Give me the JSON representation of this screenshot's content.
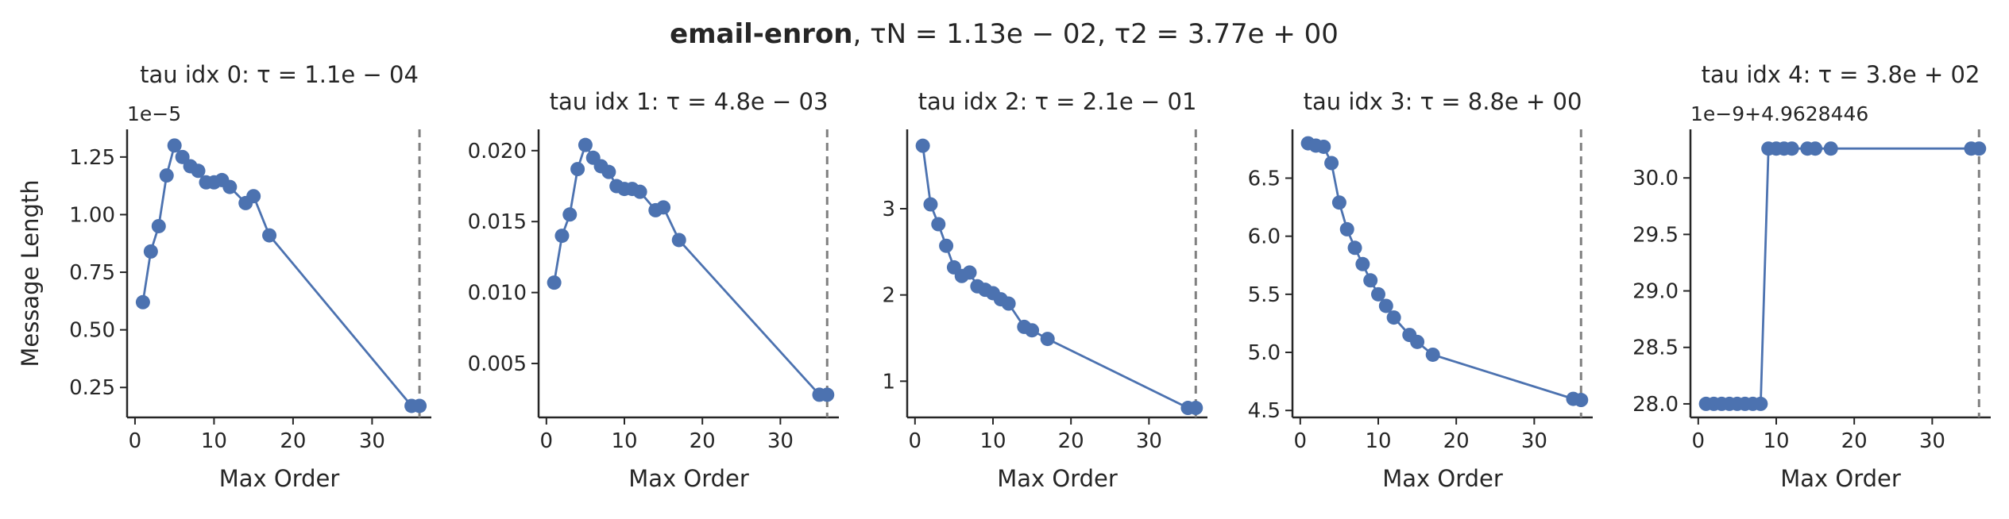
{
  "colors": {
    "series": "#4c72b0",
    "axis": "#262626",
    "vline": "#808080",
    "background": "#ffffff"
  },
  "suptitle": {
    "bold": "email-enron",
    "rest": ", τN = 1.13e − 02, τ2 = 3.77e + 00"
  },
  "chart_data": [
    {
      "type": "line",
      "title": "tau idx 0: τ = 1.1e − 04",
      "xlabel": "Max Order",
      "ylabel": "Message Length",
      "offset_text": "1e−5",
      "xlim": [
        -1,
        37.5
      ],
      "ylim": [
        0.12,
        1.37
      ],
      "xticks": [
        0,
        10,
        20,
        30
      ],
      "xtick_labels": [
        "0",
        "10",
        "20",
        "30"
      ],
      "yticks": [
        0.25,
        0.5,
        0.75,
        1.0,
        1.25
      ],
      "ytick_labels": [
        "0.25",
        "0.50",
        "0.75",
        "1.00",
        "1.25"
      ],
      "vline_x": 36,
      "x": [
        1,
        2,
        3,
        4,
        5,
        6,
        7,
        8,
        9,
        10,
        11,
        12,
        14,
        15,
        17,
        35,
        36
      ],
      "y": [
        0.62,
        0.84,
        0.95,
        1.17,
        1.3,
        1.25,
        1.21,
        1.19,
        1.14,
        1.14,
        1.15,
        1.12,
        1.05,
        1.08,
        0.91,
        0.17,
        0.17
      ]
    },
    {
      "type": "line",
      "title": "tau idx 1: τ = 4.8e − 03",
      "xlabel": "Max Order",
      "ylabel": "",
      "offset_text": "",
      "xlim": [
        -1,
        37.5
      ],
      "ylim": [
        0.0012,
        0.0215
      ],
      "xticks": [
        0,
        10,
        20,
        30
      ],
      "xtick_labels": [
        "0",
        "10",
        "20",
        "30"
      ],
      "yticks": [
        0.005,
        0.01,
        0.015,
        0.02
      ],
      "ytick_labels": [
        "0.005",
        "0.010",
        "0.015",
        "0.020"
      ],
      "vline_x": 36,
      "x": [
        1,
        2,
        3,
        4,
        5,
        6,
        7,
        8,
        9,
        10,
        11,
        12,
        14,
        15,
        17,
        35,
        36
      ],
      "y": [
        0.0107,
        0.014,
        0.0155,
        0.0187,
        0.0204,
        0.0195,
        0.0189,
        0.0185,
        0.0175,
        0.0173,
        0.0173,
        0.0171,
        0.0158,
        0.016,
        0.0137,
        0.0028,
        0.0028
      ]
    },
    {
      "type": "line",
      "title": "tau idx 2: τ = 2.1e − 01",
      "xlabel": "Max Order",
      "ylabel": "",
      "offset_text": "",
      "xlim": [
        -1,
        37.5
      ],
      "ylim": [
        0.58,
        3.92
      ],
      "xticks": [
        0,
        10,
        20,
        30
      ],
      "xtick_labels": [
        "0",
        "10",
        "20",
        "30"
      ],
      "yticks": [
        1,
        2,
        3
      ],
      "ytick_labels": [
        "1",
        "2",
        "3"
      ],
      "vline_x": 36,
      "x": [
        1,
        2,
        3,
        4,
        5,
        6,
        7,
        8,
        9,
        10,
        11,
        12,
        14,
        15,
        17,
        35,
        36
      ],
      "y": [
        3.73,
        3.05,
        2.82,
        2.57,
        2.32,
        2.22,
        2.26,
        2.1,
        2.06,
        2.02,
        1.95,
        1.9,
        1.63,
        1.59,
        1.49,
        0.69,
        0.69
      ]
    },
    {
      "type": "line",
      "title": "tau idx 3: τ = 8.8e + 00",
      "xlabel": "Max Order",
      "ylabel": "",
      "offset_text": "",
      "xlim": [
        -1,
        37.5
      ],
      "ylim": [
        4.44,
        6.92
      ],
      "xticks": [
        0,
        10,
        20,
        30
      ],
      "xtick_labels": [
        "0",
        "10",
        "20",
        "30"
      ],
      "yticks": [
        4.5,
        5.0,
        5.5,
        6.0,
        6.5
      ],
      "ytick_labels": [
        "4.5",
        "5.0",
        "5.5",
        "6.0",
        "6.5"
      ],
      "vline_x": 36,
      "x": [
        1,
        2,
        3,
        4,
        5,
        6,
        7,
        8,
        9,
        10,
        11,
        12,
        14,
        15,
        17,
        35,
        36
      ],
      "y": [
        6.8,
        6.78,
        6.77,
        6.63,
        6.29,
        6.06,
        5.9,
        5.76,
        5.62,
        5.5,
        5.4,
        5.3,
        5.15,
        5.09,
        4.98,
        4.6,
        4.59
      ]
    },
    {
      "type": "line",
      "title": "tau idx 4: τ = 3.8e + 02",
      "xlabel": "Max Order",
      "ylabel": "",
      "offset_text": "1e−9+4.9628446",
      "xlim": [
        -1,
        37.5
      ],
      "ylim": [
        27.88,
        30.43
      ],
      "xticks": [
        0,
        10,
        20,
        30
      ],
      "xtick_labels": [
        "0",
        "10",
        "20",
        "30"
      ],
      "yticks": [
        28.0,
        28.5,
        29.0,
        29.5,
        30.0
      ],
      "ytick_labels": [
        "28.0",
        "28.5",
        "29.0",
        "29.5",
        "30.0"
      ],
      "vline_x": 36,
      "x": [
        1,
        2,
        3,
        4,
        5,
        6,
        7,
        8,
        9,
        10,
        11,
        12,
        14,
        15,
        17,
        35,
        36
      ],
      "y": [
        28.0,
        28.0,
        28.0,
        28.0,
        28.0,
        28.0,
        28.0,
        28.0,
        30.26,
        30.26,
        30.26,
        30.26,
        30.26,
        30.26,
        30.26,
        30.26,
        30.26
      ]
    }
  ]
}
